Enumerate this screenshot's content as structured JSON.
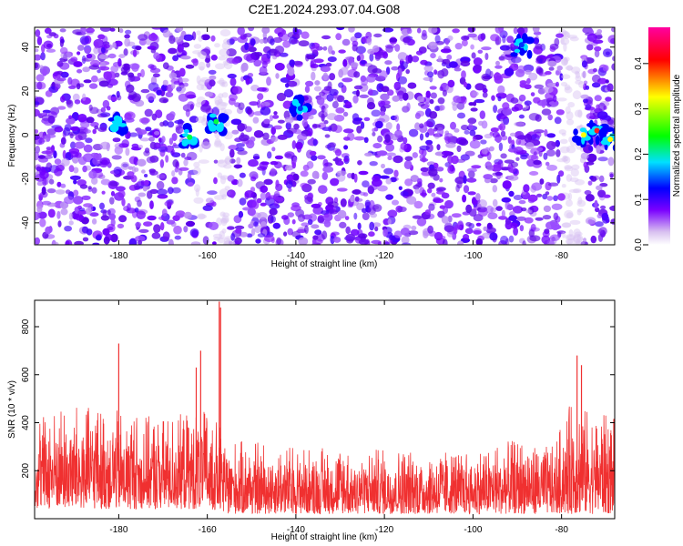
{
  "title": "C2E1.2024.293.07.04.G08",
  "chart_data": [
    {
      "type": "heatmap",
      "xlabel": "Height of straight line (km)",
      "ylabel": "Frequency (Hz)",
      "xlim": [
        -199,
        -68
      ],
      "ylim": [
        -50,
        49
      ],
      "x_ticks": [
        -180,
        -160,
        -140,
        -120,
        -100,
        -80
      ],
      "y_ticks": [
        -40,
        -20,
        0,
        20,
        40
      ],
      "colorbar": {
        "label": "Normalized spectral amplitude",
        "range": [
          0.0,
          0.48
        ],
        "ticks": [
          0.0,
          0.1,
          0.2,
          0.3,
          0.4
        ],
        "colormap": [
          "#ffffff",
          "#d8c0f0",
          "#7a00ff",
          "#0000ff",
          "#00e0ff",
          "#00ff00",
          "#ffff00",
          "#ff0000",
          "#ff00a0"
        ]
      },
      "hotspots": [
        {
          "x": -180,
          "y": 5,
          "value": 0.2
        },
        {
          "x": -164,
          "y": -1,
          "value": 0.22
        },
        {
          "x": -158,
          "y": 6,
          "value": 0.25
        },
        {
          "x": -75,
          "y": 0,
          "value": 0.3
        },
        {
          "x": -72,
          "y": 2,
          "value": 0.45
        },
        {
          "x": -69,
          "y": -2,
          "value": 0.28
        },
        {
          "x": -139,
          "y": 12,
          "value": 0.12
        },
        {
          "x": -89,
          "y": 41,
          "value": 0.11
        }
      ],
      "gaps": [
        [
          -162.5,
          -160.5
        ],
        [
          -158,
          -155
        ],
        [
          -80,
          -75
        ]
      ]
    },
    {
      "type": "line",
      "xlabel": "Height of straight line (km)",
      "ylabel": "SNR (10 * v/v)",
      "xlim": [
        -199,
        -68
      ],
      "ylim": [
        0,
        910
      ],
      "x_ticks": [
        -180,
        -160,
        -140,
        -120,
        -100,
        -80
      ],
      "y_ticks": [
        200,
        400,
        600,
        800
      ],
      "color": "#f03030",
      "envelope": [
        {
          "x": -199,
          "low": 40,
          "high": 430
        },
        {
          "x": -190,
          "low": 40,
          "high": 470
        },
        {
          "x": -180,
          "low": 40,
          "high": 450
        },
        {
          "x": -170,
          "low": 40,
          "high": 420
        },
        {
          "x": -160,
          "low": 40,
          "high": 460
        },
        {
          "x": -155,
          "low": 20,
          "high": 330
        },
        {
          "x": -140,
          "low": 20,
          "high": 300
        },
        {
          "x": -120,
          "low": 20,
          "high": 290
        },
        {
          "x": -100,
          "low": 20,
          "high": 290
        },
        {
          "x": -90,
          "low": 20,
          "high": 330
        },
        {
          "x": -82,
          "low": 20,
          "high": 300
        },
        {
          "x": -78,
          "low": 20,
          "high": 480
        },
        {
          "x": -72,
          "low": 20,
          "high": 440
        },
        {
          "x": -68,
          "low": 20,
          "high": 430
        }
      ],
      "peaks": [
        {
          "x": -180.0,
          "y": 730
        },
        {
          "x": -162.5,
          "y": 630
        },
        {
          "x": -161.5,
          "y": 700
        },
        {
          "x": -157.3,
          "y": 905
        },
        {
          "x": -157.0,
          "y": 880
        },
        {
          "x": -76.5,
          "y": 680
        },
        {
          "x": -75.5,
          "y": 640
        }
      ]
    }
  ]
}
